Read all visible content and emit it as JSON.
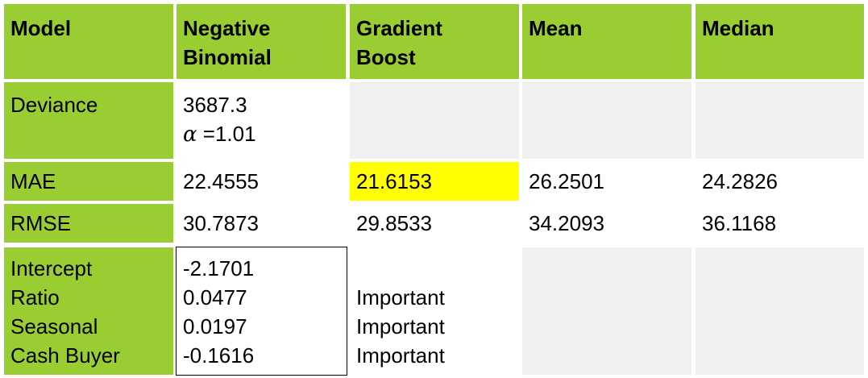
{
  "header": {
    "model": "Model",
    "negative_binomial": [
      "Negative",
      "Binomial"
    ],
    "gradient_boost": [
      "Gradient",
      "Boost"
    ],
    "mean": "Mean",
    "median": "Median"
  },
  "rows": {
    "deviance": {
      "label": "Deviance",
      "negative_binomial": "3687.3",
      "alpha_symbol": "α",
      "alpha_value": " =1.01"
    },
    "mae": {
      "label": "MAE",
      "negative_binomial": "22.4555",
      "gradient_boost": "21.6153",
      "mean": "26.2501",
      "median": "24.2826"
    },
    "rmse": {
      "label": "RMSE",
      "negative_binomial": "30.7873",
      "gradient_boost": "29.8533",
      "mean": "34.2093",
      "median": "36.1168"
    },
    "coefficients": {
      "labels": [
        "Intercept",
        "Ratio",
        "Seasonal",
        "Cash Buyer"
      ],
      "negative_binomial": [
        "-2.1701",
        "0.0477",
        "0.0197",
        "-0.1616"
      ],
      "gradient_boost": [
        "Important",
        "Important",
        "Important"
      ]
    }
  },
  "colors": {
    "header_green": "#9acd32",
    "empty_gray": "#efefef",
    "highlight_yellow": "#ffff00"
  }
}
